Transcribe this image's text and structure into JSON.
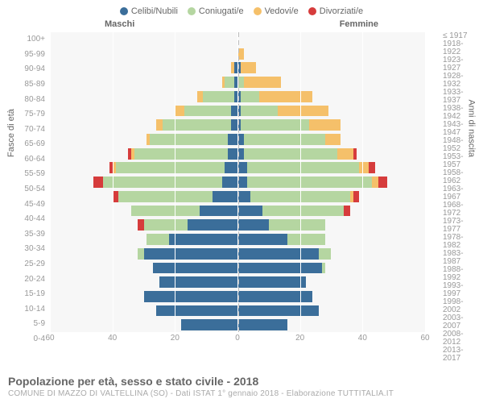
{
  "legend": {
    "items": [
      {
        "label": "Celibi/Nubili",
        "color": "#3b6e9a"
      },
      {
        "label": "Coniugati/e",
        "color": "#b5d6a1"
      },
      {
        "label": "Vedovi/e",
        "color": "#f5c06a"
      },
      {
        "label": "Divorziati/e",
        "color": "#d63c3c"
      }
    ]
  },
  "headers": {
    "male": "Maschi",
    "female": "Femmine"
  },
  "yaxis_left_title": "Fasce di età",
  "yaxis_right_title": "Anni di nascita",
  "xmax": 60,
  "xticks": [
    60,
    40,
    20,
    0,
    20,
    40,
    60
  ],
  "age_labels": [
    "100+",
    "95-99",
    "90-94",
    "85-89",
    "80-84",
    "75-79",
    "70-74",
    "65-69",
    "60-64",
    "55-59",
    "50-54",
    "45-49",
    "40-44",
    "35-39",
    "30-34",
    "25-29",
    "20-24",
    "15-19",
    "10-14",
    "5-9",
    "0-4"
  ],
  "birth_labels": [
    "≤ 1917",
    "1918-1922",
    "1923-1927",
    "1928-1932",
    "1933-1937",
    "1938-1942",
    "1943-1947",
    "1948-1952",
    "1953-1957",
    "1958-1962",
    "1963-1967",
    "1968-1972",
    "1973-1977",
    "1978-1982",
    "1983-1987",
    "1988-1992",
    "1993-1997",
    "1998-2002",
    "2003-2007",
    "2008-2012",
    "2013-2017"
  ],
  "rows": [
    {
      "m": {
        "c": 0,
        "con": 0,
        "v": 0,
        "d": 0
      },
      "f": {
        "c": 0,
        "con": 0,
        "v": 0,
        "d": 0
      }
    },
    {
      "m": {
        "c": 0,
        "con": 0,
        "v": 0,
        "d": 0
      },
      "f": {
        "c": 0,
        "con": 0,
        "v": 2,
        "d": 0
      }
    },
    {
      "m": {
        "c": 1,
        "con": 0,
        "v": 1,
        "d": 0
      },
      "f": {
        "c": 1,
        "con": 0,
        "v": 5,
        "d": 0
      }
    },
    {
      "m": {
        "c": 1,
        "con": 3,
        "v": 1,
        "d": 0
      },
      "f": {
        "c": 0,
        "con": 2,
        "v": 12,
        "d": 0
      }
    },
    {
      "m": {
        "c": 1,
        "con": 10,
        "v": 2,
        "d": 0
      },
      "f": {
        "c": 1,
        "con": 6,
        "v": 17,
        "d": 0
      }
    },
    {
      "m": {
        "c": 2,
        "con": 15,
        "v": 3,
        "d": 0
      },
      "f": {
        "c": 1,
        "con": 12,
        "v": 16,
        "d": 0
      }
    },
    {
      "m": {
        "c": 2,
        "con": 22,
        "v": 2,
        "d": 0
      },
      "f": {
        "c": 1,
        "con": 22,
        "v": 10,
        "d": 0
      }
    },
    {
      "m": {
        "c": 3,
        "con": 25,
        "v": 1,
        "d": 0
      },
      "f": {
        "c": 2,
        "con": 26,
        "v": 5,
        "d": 0
      }
    },
    {
      "m": {
        "c": 3,
        "con": 30,
        "v": 1,
        "d": 1
      },
      "f": {
        "c": 2,
        "con": 30,
        "v": 5,
        "d": 1
      }
    },
    {
      "m": {
        "c": 4,
        "con": 35,
        "v": 1,
        "d": 1
      },
      "f": {
        "c": 3,
        "con": 36,
        "v": 3,
        "d": 2
      }
    },
    {
      "m": {
        "c": 5,
        "con": 38,
        "v": 0,
        "d": 3
      },
      "f": {
        "c": 3,
        "con": 40,
        "v": 2,
        "d": 3
      }
    },
    {
      "m": {
        "c": 8,
        "con": 30,
        "v": 0,
        "d": 2
      },
      "f": {
        "c": 4,
        "con": 32,
        "v": 1,
        "d": 2
      }
    },
    {
      "m": {
        "c": 12,
        "con": 22,
        "v": 0,
        "d": 0
      },
      "f": {
        "c": 8,
        "con": 26,
        "v": 0,
        "d": 2
      }
    },
    {
      "m": {
        "c": 16,
        "con": 14,
        "v": 0,
        "d": 2
      },
      "f": {
        "c": 10,
        "con": 18,
        "v": 0,
        "d": 0
      }
    },
    {
      "m": {
        "c": 22,
        "con": 7,
        "v": 0,
        "d": 0
      },
      "f": {
        "c": 16,
        "con": 12,
        "v": 0,
        "d": 0
      }
    },
    {
      "m": {
        "c": 30,
        "con": 2,
        "v": 0,
        "d": 0
      },
      "f": {
        "c": 26,
        "con": 4,
        "v": 0,
        "d": 0
      }
    },
    {
      "m": {
        "c": 27,
        "con": 0,
        "v": 0,
        "d": 0
      },
      "f": {
        "c": 27,
        "con": 1,
        "v": 0,
        "d": 0
      }
    },
    {
      "m": {
        "c": 25,
        "con": 0,
        "v": 0,
        "d": 0
      },
      "f": {
        "c": 22,
        "con": 0,
        "v": 0,
        "d": 0
      }
    },
    {
      "m": {
        "c": 30,
        "con": 0,
        "v": 0,
        "d": 0
      },
      "f": {
        "c": 24,
        "con": 0,
        "v": 0,
        "d": 0
      }
    },
    {
      "m": {
        "c": 26,
        "con": 0,
        "v": 0,
        "d": 0
      },
      "f": {
        "c": 26,
        "con": 0,
        "v": 0,
        "d": 0
      }
    },
    {
      "m": {
        "c": 18,
        "con": 0,
        "v": 0,
        "d": 0
      },
      "f": {
        "c": 16,
        "con": 0,
        "v": 0,
        "d": 0
      }
    }
  ],
  "colors": {
    "c": "#3b6e9a",
    "con": "#b5d6a1",
    "v": "#f5c06a",
    "d": "#d63c3c"
  },
  "title": "Popolazione per età, sesso e stato civile - 2018",
  "subtitle": "COMUNE DI MAZZO DI VALTELLINA (SO) - Dati ISTAT 1° gennaio 2018 - Elaborazione TUTTITALIA.IT"
}
